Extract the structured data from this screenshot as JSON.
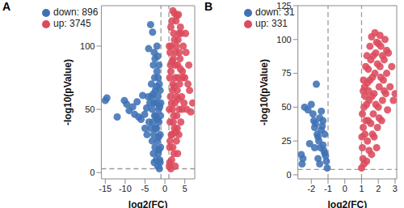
{
  "chart_data": [
    {
      "type": "scatter",
      "title": "A",
      "xlabel": "log2(FC)",
      "ylabel": "-log10(pValue)",
      "xlim": [
        -16,
        7.5
      ],
      "xticks": [
        -15,
        -10,
        -5,
        0,
        5
      ],
      "ylim": [
        -5,
        132
      ],
      "yticks": [
        0,
        50,
        100
      ],
      "legend": "upper left",
      "thresholds": {
        "x": [
          -1,
          1
        ],
        "y": 3
      },
      "series": [
        {
          "name": "down: 896",
          "color": "#3f72b5",
          "x": [
            -15,
            -14.6,
            -12,
            -10.2,
            -9.6,
            -9,
            -8.1,
            -7.6,
            -7,
            -6.6,
            -6,
            -5.6,
            -5.1,
            -4.6,
            -4.1,
            -3.6,
            -3.1,
            -3.4,
            -3.3,
            -3.2,
            -3,
            -2.9,
            -2.8,
            -2.7,
            -2.6,
            -2.5,
            -2.4,
            -2.3,
            -2.2,
            -2.1,
            -2,
            -1.9,
            -1.8,
            -1.7,
            -1.6,
            -1.5,
            -1.4,
            -1.3,
            -1.2,
            -1.1,
            -1.05,
            -2.5,
            -2,
            -1.5,
            -1.2,
            -2.8,
            -2.2,
            -1.8,
            -1.4,
            -1.1,
            -3.5,
            -4,
            -4.5,
            -3.8,
            -2.6,
            -1.9,
            -1.6,
            -1.3,
            -2.4,
            -1.7,
            -2.1,
            -1.2,
            -3,
            -2.9,
            -4.2,
            -5,
            -3.2,
            -1.5,
            -2.7,
            -1.8
          ],
          "values": [
            57,
            59,
            44,
            57,
            54,
            49,
            52,
            46,
            56,
            44,
            42,
            61,
            46,
            51,
            98,
            117,
            111,
            70,
            60,
            50,
            40,
            85,
            30,
            95,
            75,
            20,
            65,
            45,
            55,
            35,
            80,
            25,
            60,
            15,
            50,
            40,
            70,
            10,
            30,
            20,
            55,
            90,
            100,
            85,
            65,
            55,
            10,
            5,
            3,
            45,
            35,
            40,
            30,
            55,
            45,
            42,
            28,
            52,
            35,
            75,
            68,
            8,
            62,
            15,
            60,
            35,
            25,
            18,
            8,
            92
          ]
        },
        {
          "name": "up: 3745",
          "color": "#dc4a5c",
          "x": [
            1.1,
            1.2,
            1.3,
            1.4,
            1.5,
            1.6,
            1.7,
            1.8,
            1.9,
            2,
            2.1,
            2.2,
            2.3,
            2.4,
            2.5,
            2.6,
            2.7,
            2.8,
            2.9,
            3,
            3.1,
            3.2,
            3.3,
            3.4,
            3.5,
            3.6,
            3.7,
            3.8,
            3.9,
            4,
            4.2,
            4.4,
            4.6,
            4.8,
            5,
            5.3,
            5.5,
            5.8,
            6.2,
            6.5,
            7,
            1.1,
            1.2,
            1.3,
            1.5,
            1.8,
            2,
            2.4,
            3,
            1.4,
            1.6,
            1.9,
            2.2,
            2.5,
            2.8,
            3.1,
            3.3,
            3.6,
            4.1,
            4.5,
            1.2,
            1.5,
            2,
            2.6,
            3.2,
            1.7,
            2.3,
            2.9,
            3.5,
            4.3,
            1.3,
            1.8,
            2.1,
            2.7,
            3.4,
            3.9,
            5.2,
            6,
            1.1,
            2.4
          ],
          "values": [
            5,
            20,
            40,
            60,
            80,
            100,
            10,
            30,
            50,
            70,
            90,
            110,
            15,
            35,
            55,
            75,
            95,
            120,
            25,
            45,
            65,
            85,
            105,
            125,
            30,
            50,
            70,
            90,
            115,
            40,
            60,
            80,
            100,
            55,
            75,
            95,
            50,
            70,
            65,
            48,
            55,
            50,
            75,
            95,
            115,
            120,
            128,
            126,
            124,
            85,
            30,
            65,
            45,
            85,
            60,
            35,
            75,
            95,
            110,
            75,
            8,
            3,
            20,
            5,
            15,
            55,
            68,
            100,
            110,
            50,
            25,
            88,
            40,
            32,
            58,
            82,
            110,
            85,
            100,
            105
          ]
        }
      ]
    },
    {
      "type": "scatter",
      "title": "B",
      "xlabel": "log2(FC)",
      "ylabel": "-log10(pValue)",
      "xlim": [
        -2.8,
        3.1
      ],
      "xticks": [
        -2,
        -1,
        0,
        1,
        2,
        3
      ],
      "ylim": [
        -3,
        125
      ],
      "yticks": [
        0,
        25,
        50,
        75,
        100,
        125
      ],
      "legend": "upper left",
      "thresholds": {
        "x": [
          -1,
          1
        ],
        "y": 4
      },
      "series": [
        {
          "name": "down: 31",
          "color": "#3f72b5",
          "x": [
            -2.6,
            -2.5,
            -2.55,
            -2.4,
            -2.2,
            -2,
            -1.9,
            -1.85,
            -1.8,
            -1.75,
            -1.7,
            -1.65,
            -1.6,
            -1.55,
            -1.5,
            -1.45,
            -1.4,
            -1.35,
            -1.3,
            -1.25,
            -1.2,
            -1.15,
            -1.1,
            -1.05,
            -1.6,
            -1.8,
            -1.4,
            -2.1,
            -1.3,
            -1.2,
            -1.5
          ],
          "values": [
            15,
            12,
            8,
            50,
            48,
            52,
            45,
            40,
            35,
            38,
            67,
            30,
            28,
            25,
            42,
            20,
            33,
            36,
            22,
            18,
            30,
            14,
            10,
            5,
            12,
            20,
            47,
            23,
            40,
            16,
            8
          ]
        },
        {
          "name": "up: 331",
          "color": "#dc4a5c",
          "x": [
            1,
            1.05,
            1.1,
            1.15,
            1.2,
            1.25,
            1.3,
            1.35,
            1.4,
            1.45,
            1.5,
            1.55,
            1.6,
            1.65,
            1.7,
            1.75,
            1.8,
            1.85,
            1.9,
            1.95,
            2,
            2.05,
            2.1,
            2.15,
            2.2,
            2.25,
            2.3,
            2.35,
            2.4,
            2.45,
            2.5,
            2.55,
            2.6,
            2.7,
            2.8,
            2.9,
            3,
            1.05,
            1.1,
            1.2,
            1.3,
            1.4,
            1.5,
            1.6,
            1.7,
            1.8,
            1.9,
            2,
            2.1,
            1.15,
            1.25,
            1.35,
            1.45,
            1.55,
            1.65,
            1.75,
            1.85,
            1.95,
            2.05,
            2.15,
            2.25,
            2.35,
            2.5,
            1.02,
            1.08,
            1.12,
            1.22,
            1.32,
            1.42,
            1.62
          ],
          "values": [
            5,
            20,
            35,
            50,
            65,
            80,
            10,
            25,
            40,
            55,
            70,
            85,
            15,
            30,
            45,
            60,
            75,
            90,
            20,
            35,
            50,
            65,
            80,
            95,
            40,
            55,
            70,
            85,
            100,
            60,
            75,
            48,
            90,
            65,
            80,
            55,
            60,
            45,
            62,
            30,
            52,
            78,
            95,
            102,
            88,
            105,
            98,
            97,
            103,
            8,
            40,
            68,
            18,
            38,
            72,
            28,
            52,
            82,
            42,
            72,
            88,
            62,
            92,
            28,
            12,
            70,
            58,
            88,
            62,
            58
          ]
        }
      ]
    }
  ]
}
